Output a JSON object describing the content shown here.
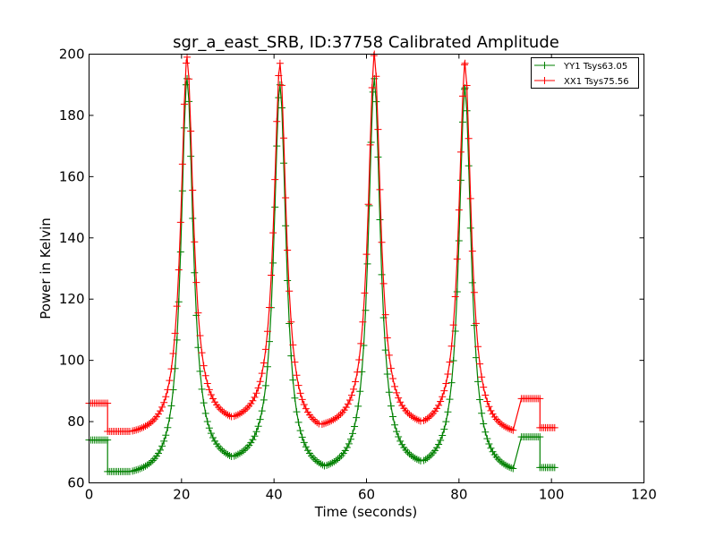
{
  "chart_data": {
    "type": "line",
    "title": "sgr_a_east_SRB, ID:37758 Calibrated Amplitude",
    "xlabel": "Time (seconds)",
    "ylabel": "Power in Kelvin",
    "xlim": [
      0,
      120
    ],
    "ylim": [
      60,
      200
    ],
    "xticks": [
      "0",
      "20",
      "40",
      "60",
      "80",
      "100",
      "120"
    ],
    "yticks": [
      "60",
      "80",
      "100",
      "120",
      "140",
      "160",
      "180",
      "200"
    ],
    "grid": false,
    "legend_position": "top-right",
    "series": [
      {
        "name": "YY1 Tsys63.05",
        "color": "#008000",
        "marker": "+",
        "segments": [
          {
            "baseline": 74,
            "x": [
              0,
              4
            ]
          },
          {
            "baseline": 63.7,
            "x": [
              4,
              9
            ]
          },
          {
            "baseline": 75,
            "x": [
              93.5,
              97.5
            ]
          },
          {
            "baseline": 65,
            "x": [
              97.5,
              101
            ]
          }
        ],
        "peaks": [
          {
            "x": 21.2,
            "y": 192
          },
          {
            "x": 41.3,
            "y": 190
          },
          {
            "x": 61.7,
            "y": 192
          },
          {
            "x": 81.3,
            "y": 189
          }
        ],
        "minima": [
          {
            "x": 9,
            "y": 63.7
          },
          {
            "x": 31,
            "y": 68.5
          },
          {
            "x": 51,
            "y": 65.5
          },
          {
            "x": 72,
            "y": 67
          },
          {
            "x": 92,
            "y": 64.5
          }
        ]
      },
      {
        "name": "XX1 Tsys75.56",
        "color": "#ff0000",
        "marker": "+",
        "segments": [
          {
            "baseline": 86,
            "x": [
              0,
              4
            ]
          },
          {
            "baseline": 76.8,
            "x": [
              4,
              9
            ]
          },
          {
            "baseline": 87.5,
            "x": [
              93.5,
              97.5
            ]
          },
          {
            "baseline": 78,
            "x": [
              97.5,
              101
            ]
          }
        ],
        "peaks": [
          {
            "x": 21.2,
            "y": 199
          },
          {
            "x": 41.3,
            "y": 197
          },
          {
            "x": 61.7,
            "y": 200
          },
          {
            "x": 81.3,
            "y": 197
          }
        ],
        "minima": [
          {
            "x": 9,
            "y": 76.8
          },
          {
            "x": 31,
            "y": 81.5
          },
          {
            "x": 50,
            "y": 79
          },
          {
            "x": 72,
            "y": 80
          },
          {
            "x": 92,
            "y": 77
          }
        ]
      }
    ]
  }
}
